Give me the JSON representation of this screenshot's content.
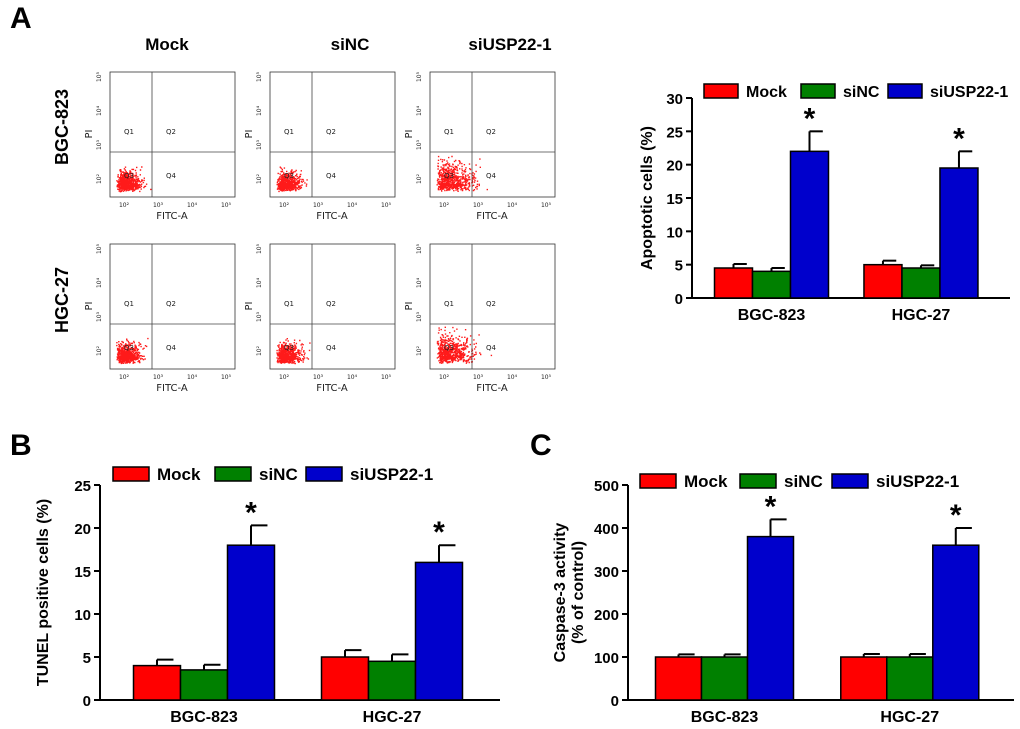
{
  "panels": {
    "a": "A",
    "b": "B",
    "c": "C"
  },
  "flow": {
    "columns": [
      "Mock",
      "siNC",
      "siUSP22-1"
    ],
    "rows": [
      "BGC-823",
      "HGC-27"
    ],
    "row_color": "#7a1f6e",
    "xlabel": "FITC-A",
    "ylabel": "PI",
    "quadrants": [
      "Q1",
      "Q2",
      "Q3",
      "Q4"
    ],
    "x_ticks": [
      "10²",
      "10³",
      "10⁴",
      "10⁵"
    ],
    "y_ticks": [
      "10²",
      "10³",
      "10⁴",
      "10⁵"
    ],
    "dot_color": "#ff1a1a",
    "spread": [
      [
        0.35,
        0.35,
        0.55
      ],
      [
        0.35,
        0.35,
        0.55
      ]
    ]
  },
  "colors": {
    "mock": "#ff0000",
    "sinc": "#008000",
    "siusp": "#0000cc"
  },
  "legend": [
    "Mock",
    "siNC",
    "siUSP22-1"
  ],
  "significance_mark": "*",
  "chart_data": [
    {
      "id": "apoptotic",
      "type": "bar",
      "title": "",
      "xlabel": "",
      "ylabel": "Apoptotic cells (%)",
      "categories": [
        "BGC-823",
        "HGC-27"
      ],
      "ylim": [
        0,
        30
      ],
      "yticks": [
        0,
        5,
        10,
        15,
        20,
        25,
        30
      ],
      "series": [
        {
          "name": "Mock",
          "values": [
            4.5,
            5.0
          ],
          "errors": [
            0.6,
            0.6
          ]
        },
        {
          "name": "siNC",
          "values": [
            4.0,
            4.5
          ],
          "errors": [
            0.5,
            0.4
          ]
        },
        {
          "name": "siUSP22-1",
          "values": [
            22.0,
            19.5
          ],
          "errors": [
            3.0,
            2.5
          ]
        }
      ],
      "significant": [
        [
          false,
          false,
          true
        ],
        [
          false,
          false,
          true
        ]
      ]
    },
    {
      "id": "tunel",
      "type": "bar",
      "title": "",
      "xlabel": "",
      "ylabel": "TUNEL positive cells (%)",
      "categories": [
        "BGC-823",
        "HGC-27"
      ],
      "ylim": [
        0,
        25
      ],
      "yticks": [
        0,
        5,
        10,
        15,
        20,
        25
      ],
      "series": [
        {
          "name": "Mock",
          "values": [
            4.0,
            5.0
          ],
          "errors": [
            0.7,
            0.8
          ]
        },
        {
          "name": "siNC",
          "values": [
            3.5,
            4.5
          ],
          "errors": [
            0.6,
            0.8
          ]
        },
        {
          "name": "siUSP22-1",
          "values": [
            18.0,
            16.0
          ],
          "errors": [
            2.3,
            2.0
          ]
        }
      ],
      "significant": [
        [
          false,
          false,
          true
        ],
        [
          false,
          false,
          true
        ]
      ]
    },
    {
      "id": "caspase",
      "type": "bar",
      "title": "",
      "xlabel": "",
      "ylabel": "Caspase-3 activity",
      "ylabel2": "(% of control)",
      "categories": [
        "BGC-823",
        "HGC-27"
      ],
      "ylim": [
        0,
        500
      ],
      "yticks": [
        0,
        100,
        200,
        300,
        400,
        500
      ],
      "series": [
        {
          "name": "Mock",
          "values": [
            100,
            100
          ],
          "errors": [
            6,
            7
          ]
        },
        {
          "name": "siNC",
          "values": [
            100,
            100
          ],
          "errors": [
            6,
            7
          ]
        },
        {
          "name": "siUSP22-1",
          "values": [
            380,
            360
          ],
          "errors": [
            40,
            40
          ]
        }
      ],
      "significant": [
        [
          false,
          false,
          true
        ],
        [
          false,
          false,
          true
        ]
      ]
    }
  ]
}
